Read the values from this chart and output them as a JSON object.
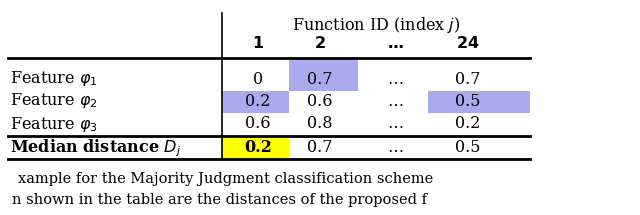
{
  "title": "Function ID (index $j$)",
  "col_headers": [
    "1",
    "2",
    "...",
    "24"
  ],
  "row_labels": [
    "Feature $\\varphi_1$",
    "Feature $\\varphi_2$",
    "Feature $\\varphi_3$",
    "Median distance $D_j$"
  ],
  "values": [
    [
      "0",
      "0.7",
      "$\\ldots$",
      "0.7"
    ],
    [
      "0.2",
      "0.6",
      "$\\ldots$",
      "0.5"
    ],
    [
      "0.6",
      "0.8",
      "$\\ldots$",
      "0.2"
    ],
    [
      "0.2",
      "0.7",
      "$\\ldots$",
      "0.5"
    ]
  ],
  "cell_colors": [
    [
      "white",
      "blue",
      "white",
      "white"
    ],
    [
      "blue",
      "white",
      "white",
      "blue"
    ],
    [
      "white",
      "white",
      "white",
      "white"
    ],
    [
      "yellow",
      "white",
      "white",
      "white"
    ]
  ],
  "blue_color": "#AAAAEE",
  "yellow_color": "#FFFF00",
  "caption1": "xample for the Majority Judgment classification scheme",
  "caption2": "n shown in the table are the distances of the proposed f",
  "background": "#ffffff",
  "figsize": [
    6.4,
    2.15
  ],
  "dpi": 100
}
